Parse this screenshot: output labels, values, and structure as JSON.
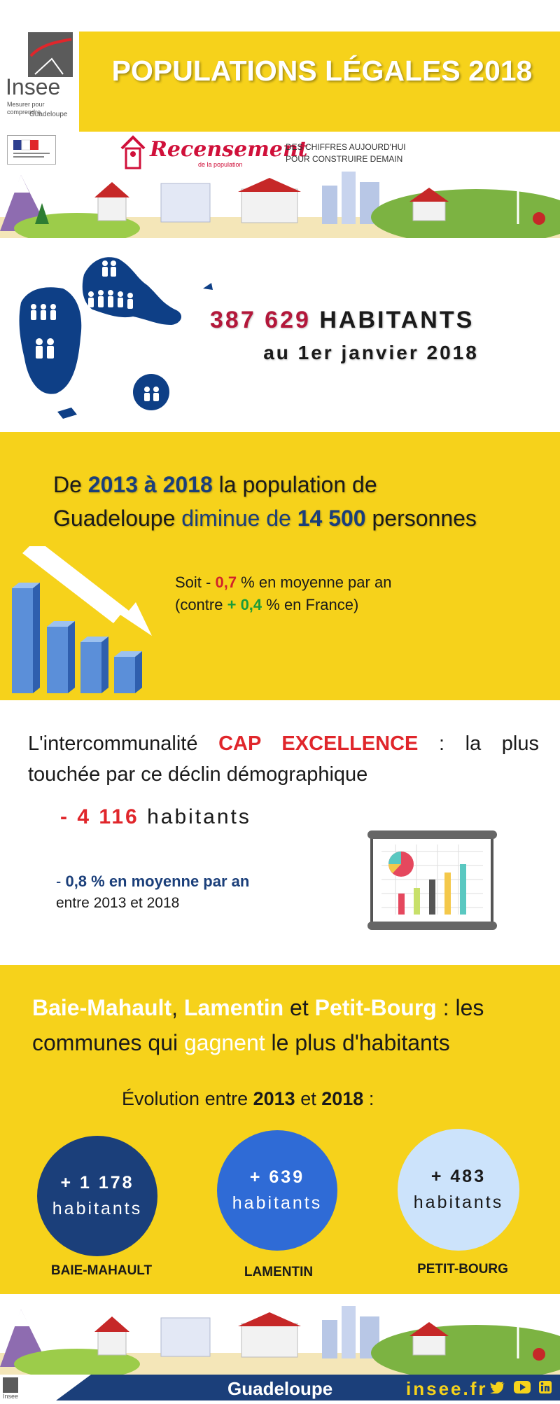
{
  "header": {
    "logo_word": "Insee",
    "logo_tagline": "Mesurer pour comprendre",
    "logo_region": "Guadeloupe",
    "title": "POPULATIONS LÉGALES 2018"
  },
  "census_banner": {
    "recensement": "Recensement",
    "recensement_sub": "de la population",
    "slogan_line1": "DES CHIFFRES AUJOURD'HUI",
    "slogan_line2": "POUR CONSTRUIRE DEMAIN"
  },
  "population": {
    "number": "387 629",
    "unit": "HABITANTS",
    "date": "au 1er janvier 2018"
  },
  "evolution": {
    "prefix": "De ",
    "years": "2013 à 2018",
    "middle": " la population de",
    "territory": "Guadeloupe",
    "verb": " diminue de ",
    "amount": "14 500",
    "suffix": " personnes",
    "soit_prefix": "Soit - ",
    "rate": "0,7",
    "rate_suffix": " % en moyenne par an",
    "france_prefix": "(contre ",
    "france_sign": "+ ",
    "france_rate": "0,4",
    "france_suffix": " % en France)"
  },
  "interco": {
    "prefix": "L'intercommunalité ",
    "name": "CAP EXCELLENCE",
    "suffix": " :  la plus touchée par ce déclin démographique",
    "loss_sign": "- ",
    "loss_number": "4 116",
    "loss_unit": " habitants",
    "rate_dash": "- ",
    "rate_text": "0,8 % en moyenne par an",
    "period": "entre 2013 et 2018"
  },
  "communes": {
    "c1": "Baie-Mahault",
    "sep1": ", ",
    "c2": "Lamentin",
    "sep2": " et ",
    "c3": "Petit-Bourg",
    "line_rest": " : les communes qui ",
    "gain_word": "gagnent",
    "tail": " le plus d'habitants",
    "evol_prefix": "Évolution entre ",
    "y1": "2013",
    "evol_mid": " et ",
    "y2": "2018",
    "evol_suffix": " :",
    "items": [
      {
        "value": "+ 1 178",
        "unit": "habitants",
        "name": "BAIE-MAHAULT",
        "color": "#1b3f7a"
      },
      {
        "value": "+ 639",
        "unit": "habitants",
        "name": "LAMENTIN",
        "color": "#2f6bd6"
      },
      {
        "value": "+ 483",
        "unit": "habitants",
        "name": "PETIT-BOURG",
        "color": "#cce3fb"
      }
    ]
  },
  "footer": {
    "region": "Guadeloupe",
    "url": "insee.fr"
  },
  "colors": {
    "yellow": "#f6d21b",
    "navy": "#1b3f7a",
    "red": "#d1232a",
    "green": "#1a9c3a"
  }
}
